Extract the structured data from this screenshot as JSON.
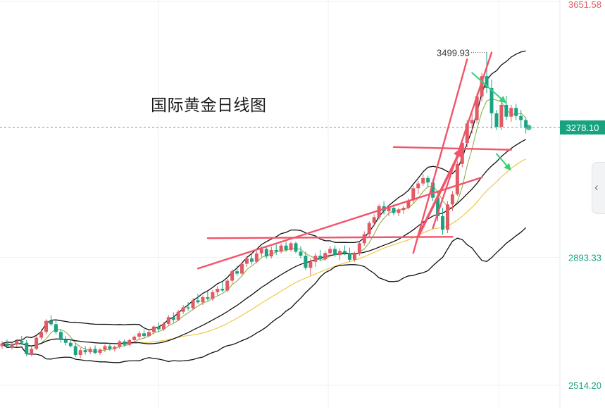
{
  "title": "国际黄金日线图",
  "colors": {
    "up": "#e15b64",
    "down": "#1aa382",
    "bollinger": "#111111",
    "ma_short": "#8fb04f",
    "ma_long": "#f2c23c",
    "trendline": "#f2546a",
    "arrow_green": "#34d07a",
    "price_tag": "#17a37f"
  },
  "side_panel": {
    "icon": "chevron-left-icon",
    "glyph": "‹"
  },
  "chart_data": {
    "type": "candlestick",
    "title": "国际黄金日线图",
    "y_axis_side": "right",
    "ylim": [
      2450,
      3651.58
    ],
    "y_ticks": [
      {
        "value": 3651.58,
        "label": "3651.58"
      },
      {
        "value": 2893.33,
        "label": "2893.33"
      },
      {
        "value": 2514.2,
        "label": "2514.20"
      }
    ],
    "grid": true,
    "current_price": {
      "value": 3278.1,
      "label": "3278.10"
    },
    "high_annotation": {
      "value": 3499.93,
      "label": "3499.93"
    },
    "candles_ohlc": [
      [
        2630,
        2645,
        2622,
        2638
      ],
      [
        2638,
        2650,
        2625,
        2630
      ],
      [
        2630,
        2641,
        2620,
        2635
      ],
      [
        2635,
        2650,
        2628,
        2645
      ],
      [
        2645,
        2660,
        2634,
        2640
      ],
      [
        2640,
        2648,
        2600,
        2606
      ],
      [
        2606,
        2628,
        2600,
        2622
      ],
      [
        2622,
        2660,
        2618,
        2655
      ],
      [
        2655,
        2680,
        2648,
        2672
      ],
      [
        2672,
        2710,
        2665,
        2705
      ],
      [
        2705,
        2722,
        2690,
        2695
      ],
      [
        2695,
        2705,
        2665,
        2672
      ],
      [
        2672,
        2680,
        2640,
        2648
      ],
      [
        2648,
        2660,
        2632,
        2640
      ],
      [
        2640,
        2652,
        2626,
        2630
      ],
      [
        2630,
        2640,
        2598,
        2604
      ],
      [
        2604,
        2625,
        2595,
        2618
      ],
      [
        2618,
        2630,
        2605,
        2612
      ],
      [
        2612,
        2628,
        2606,
        2622
      ],
      [
        2622,
        2632,
        2606,
        2610
      ],
      [
        2610,
        2624,
        2604,
        2620
      ],
      [
        2620,
        2635,
        2612,
        2630
      ],
      [
        2630,
        2640,
        2616,
        2622
      ],
      [
        2622,
        2632,
        2614,
        2628
      ],
      [
        2628,
        2648,
        2622,
        2644
      ],
      [
        2644,
        2650,
        2628,
        2634
      ],
      [
        2634,
        2652,
        2630,
        2648
      ],
      [
        2648,
        2662,
        2640,
        2658
      ],
      [
        2658,
        2675,
        2650,
        2668
      ],
      [
        2668,
        2680,
        2655,
        2660
      ],
      [
        2660,
        2676,
        2656,
        2672
      ],
      [
        2672,
        2692,
        2665,
        2688
      ],
      [
        2688,
        2700,
        2672,
        2680
      ],
      [
        2680,
        2702,
        2676,
        2696
      ],
      [
        2696,
        2722,
        2690,
        2716
      ],
      [
        2716,
        2730,
        2700,
        2708
      ],
      [
        2708,
        2738,
        2704,
        2732
      ],
      [
        2732,
        2752,
        2725,
        2745
      ],
      [
        2745,
        2760,
        2735,
        2742
      ],
      [
        2742,
        2772,
        2738,
        2766
      ],
      [
        2766,
        2785,
        2755,
        2760
      ],
      [
        2760,
        2780,
        2752,
        2775
      ],
      [
        2775,
        2792,
        2765,
        2770
      ],
      [
        2770,
        2796,
        2764,
        2790
      ],
      [
        2790,
        2808,
        2780,
        2800
      ],
      [
        2800,
        2820,
        2790,
        2795
      ],
      [
        2795,
        2830,
        2790,
        2824
      ],
      [
        2824,
        2858,
        2815,
        2852
      ],
      [
        2852,
        2868,
        2838,
        2845
      ],
      [
        2845,
        2880,
        2840,
        2874
      ],
      [
        2874,
        2898,
        2865,
        2890
      ],
      [
        2890,
        2906,
        2872,
        2880
      ],
      [
        2880,
        2912,
        2876,
        2905
      ],
      [
        2905,
        2925,
        2895,
        2918
      ],
      [
        2918,
        2925,
        2890,
        2896
      ],
      [
        2896,
        2925,
        2890,
        2915
      ],
      [
        2915,
        2932,
        2900,
        2910
      ],
      [
        2910,
        2934,
        2905,
        2928
      ],
      [
        2928,
        2940,
        2910,
        2915
      ],
      [
        2915,
        2940,
        2910,
        2935
      ],
      [
        2935,
        2940,
        2905,
        2910
      ],
      [
        2910,
        2926,
        2890,
        2898
      ],
      [
        2898,
        2910,
        2855,
        2862
      ],
      [
        2862,
        2890,
        2840,
        2880
      ],
      [
        2880,
        2905,
        2865,
        2898
      ],
      [
        2898,
        2915,
        2882,
        2888
      ],
      [
        2888,
        2912,
        2884,
        2906
      ],
      [
        2906,
        2926,
        2895,
        2918
      ],
      [
        2918,
        2928,
        2895,
        2900
      ],
      [
        2900,
        2920,
        2885,
        2912
      ],
      [
        2912,
        2928,
        2900,
        2905
      ],
      [
        2905,
        2922,
        2880,
        2886
      ],
      [
        2886,
        2910,
        2880,
        2904
      ],
      [
        2904,
        2940,
        2898,
        2935
      ],
      [
        2935,
        2970,
        2928,
        2962
      ],
      [
        2962,
        3000,
        2955,
        2995
      ],
      [
        2995,
        3020,
        2985,
        3012
      ],
      [
        3012,
        3050,
        3005,
        3045
      ],
      [
        3045,
        3060,
        3020,
        3030
      ],
      [
        3030,
        3048,
        3015,
        3040
      ],
      [
        3040,
        3050,
        3018,
        3025
      ],
      [
        3025,
        3040,
        3015,
        3034
      ],
      [
        3034,
        3046,
        3022,
        3040
      ],
      [
        3040,
        3068,
        3035,
        3062
      ],
      [
        3062,
        3105,
        3055,
        3098
      ],
      [
        3098,
        3120,
        3080,
        3112
      ],
      [
        3112,
        3140,
        3105,
        3128
      ],
      [
        3128,
        3135,
        3100,
        3115
      ],
      [
        3115,
        3125,
        3060,
        3070
      ],
      [
        3070,
        3090,
        3000,
        3015
      ],
      [
        3015,
        3040,
        2960,
        2975
      ],
      [
        2975,
        3060,
        2965,
        3050
      ],
      [
        3050,
        3090,
        3030,
        3080
      ],
      [
        3080,
        3180,
        3075,
        3170
      ],
      [
        3170,
        3240,
        3160,
        3232
      ],
      [
        3232,
        3300,
        3220,
        3290
      ],
      [
        3290,
        3320,
        3260,
        3300
      ],
      [
        3300,
        3380,
        3290,
        3370
      ],
      [
        3370,
        3440,
        3355,
        3430
      ],
      [
        3430,
        3500,
        3380,
        3395
      ],
      [
        3395,
        3420,
        3275,
        3320
      ],
      [
        3320,
        3330,
        3270,
        3280
      ],
      [
        3280,
        3355,
        3270,
        3345
      ],
      [
        3345,
        3372,
        3300,
        3310
      ],
      [
        3310,
        3345,
        3295,
        3336
      ],
      [
        3336,
        3348,
        3300,
        3312
      ],
      [
        3312,
        3330,
        3280,
        3300
      ],
      [
        3300,
        3308,
        3260,
        3278
      ]
    ],
    "series": [
      {
        "kind": "bollinger-upper"
      },
      {
        "kind": "bollinger-middle"
      },
      {
        "kind": "bollinger-lower"
      },
      {
        "kind": "ma-short"
      },
      {
        "kind": "ma-long"
      }
    ],
    "trendlines": [
      {
        "name": "support-line-1",
        "from": [
          42,
          2950
        ],
        "to": [
          92,
          2954
        ]
      },
      {
        "name": "rising-support-line",
        "from": [
          40,
          2860
        ],
        "to": [
          98,
          3130
        ]
      },
      {
        "name": "resistance-breakout-line",
        "from": [
          80,
          3220
        ],
        "to": [
          104,
          3212
        ]
      },
      {
        "name": "steep-trend-line-1",
        "from": [
          84,
          2906
        ],
        "to": [
          95,
          3480
        ]
      },
      {
        "name": "steep-trend-line-2",
        "from": [
          88,
          2980
        ],
        "to": [
          100,
          3500
        ]
      }
    ],
    "arrows": [
      {
        "name": "rally-arrow",
        "color": "up",
        "from": [
          85,
          2955
        ],
        "to": [
          94,
          3220
        ]
      },
      {
        "name": "down-arrow-upper",
        "color": "green",
        "from": [
          96,
          3440
        ],
        "to": [
          103,
          3350
        ]
      },
      {
        "name": "down-arrow-lower",
        "color": "green",
        "from": [
          101,
          3200
        ],
        "to": [
          104,
          3150
        ]
      }
    ]
  }
}
